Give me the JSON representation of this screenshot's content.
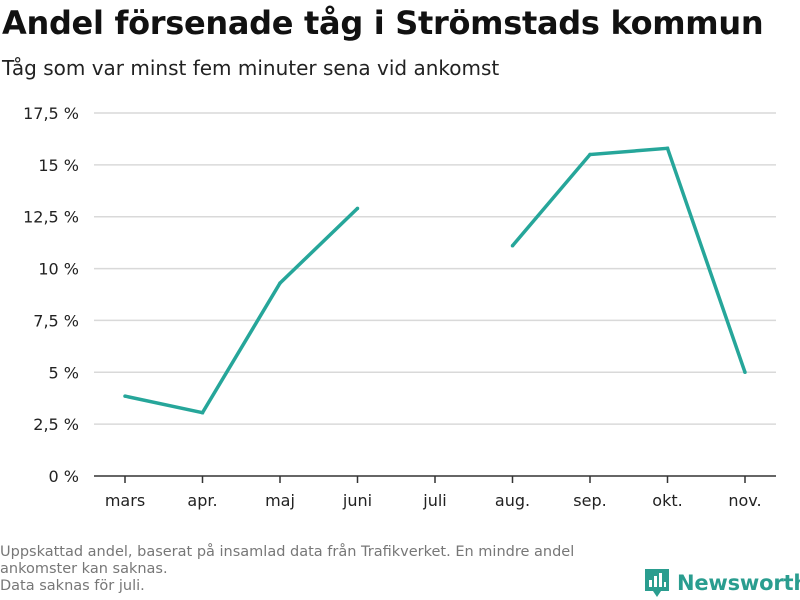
{
  "header": {
    "title": "Andel försenade tåg i Strömstads kommun",
    "subtitle": "Tåg som var minst fem minuter sena vid ankomst"
  },
  "footer": {
    "notes": [
      "Uppskattad andel, baserat på insamlad data från Trafikverket. En mindre andel ankomster kan saknas.",
      "Data saknas för juli."
    ],
    "brand": "Newsworthy"
  },
  "colors": {
    "line": "#26a69a",
    "grid": "#d9d9d9",
    "axis": "#333333",
    "brand": "#2a9d8f"
  },
  "chart_data": {
    "type": "line",
    "title": "Andel försenade tåg i Strömstads kommun",
    "subtitle": "Tåg som var minst fem minuter sena vid ankomst",
    "xlabel": "",
    "ylabel": "",
    "categories": [
      "mars",
      "apr.",
      "maj",
      "juni",
      "juli",
      "aug.",
      "sep.",
      "okt.",
      "nov."
    ],
    "series": [
      {
        "name": "Andel försenade tåg",
        "values": [
          3.85,
          3.05,
          9.3,
          12.9,
          null,
          11.1,
          15.5,
          15.8,
          5.0
        ]
      }
    ],
    "ylim": [
      0,
      17.5
    ],
    "yticks": [
      0,
      2.5,
      5,
      7.5,
      10,
      12.5,
      15,
      17.5
    ],
    "ytick_labels": [
      "0 %",
      "2,5 %",
      "5 %",
      "7,5 %",
      "10 %",
      "12,5 %",
      "15 %",
      "17,5 %"
    ],
    "grid": true,
    "legend": "none"
  }
}
